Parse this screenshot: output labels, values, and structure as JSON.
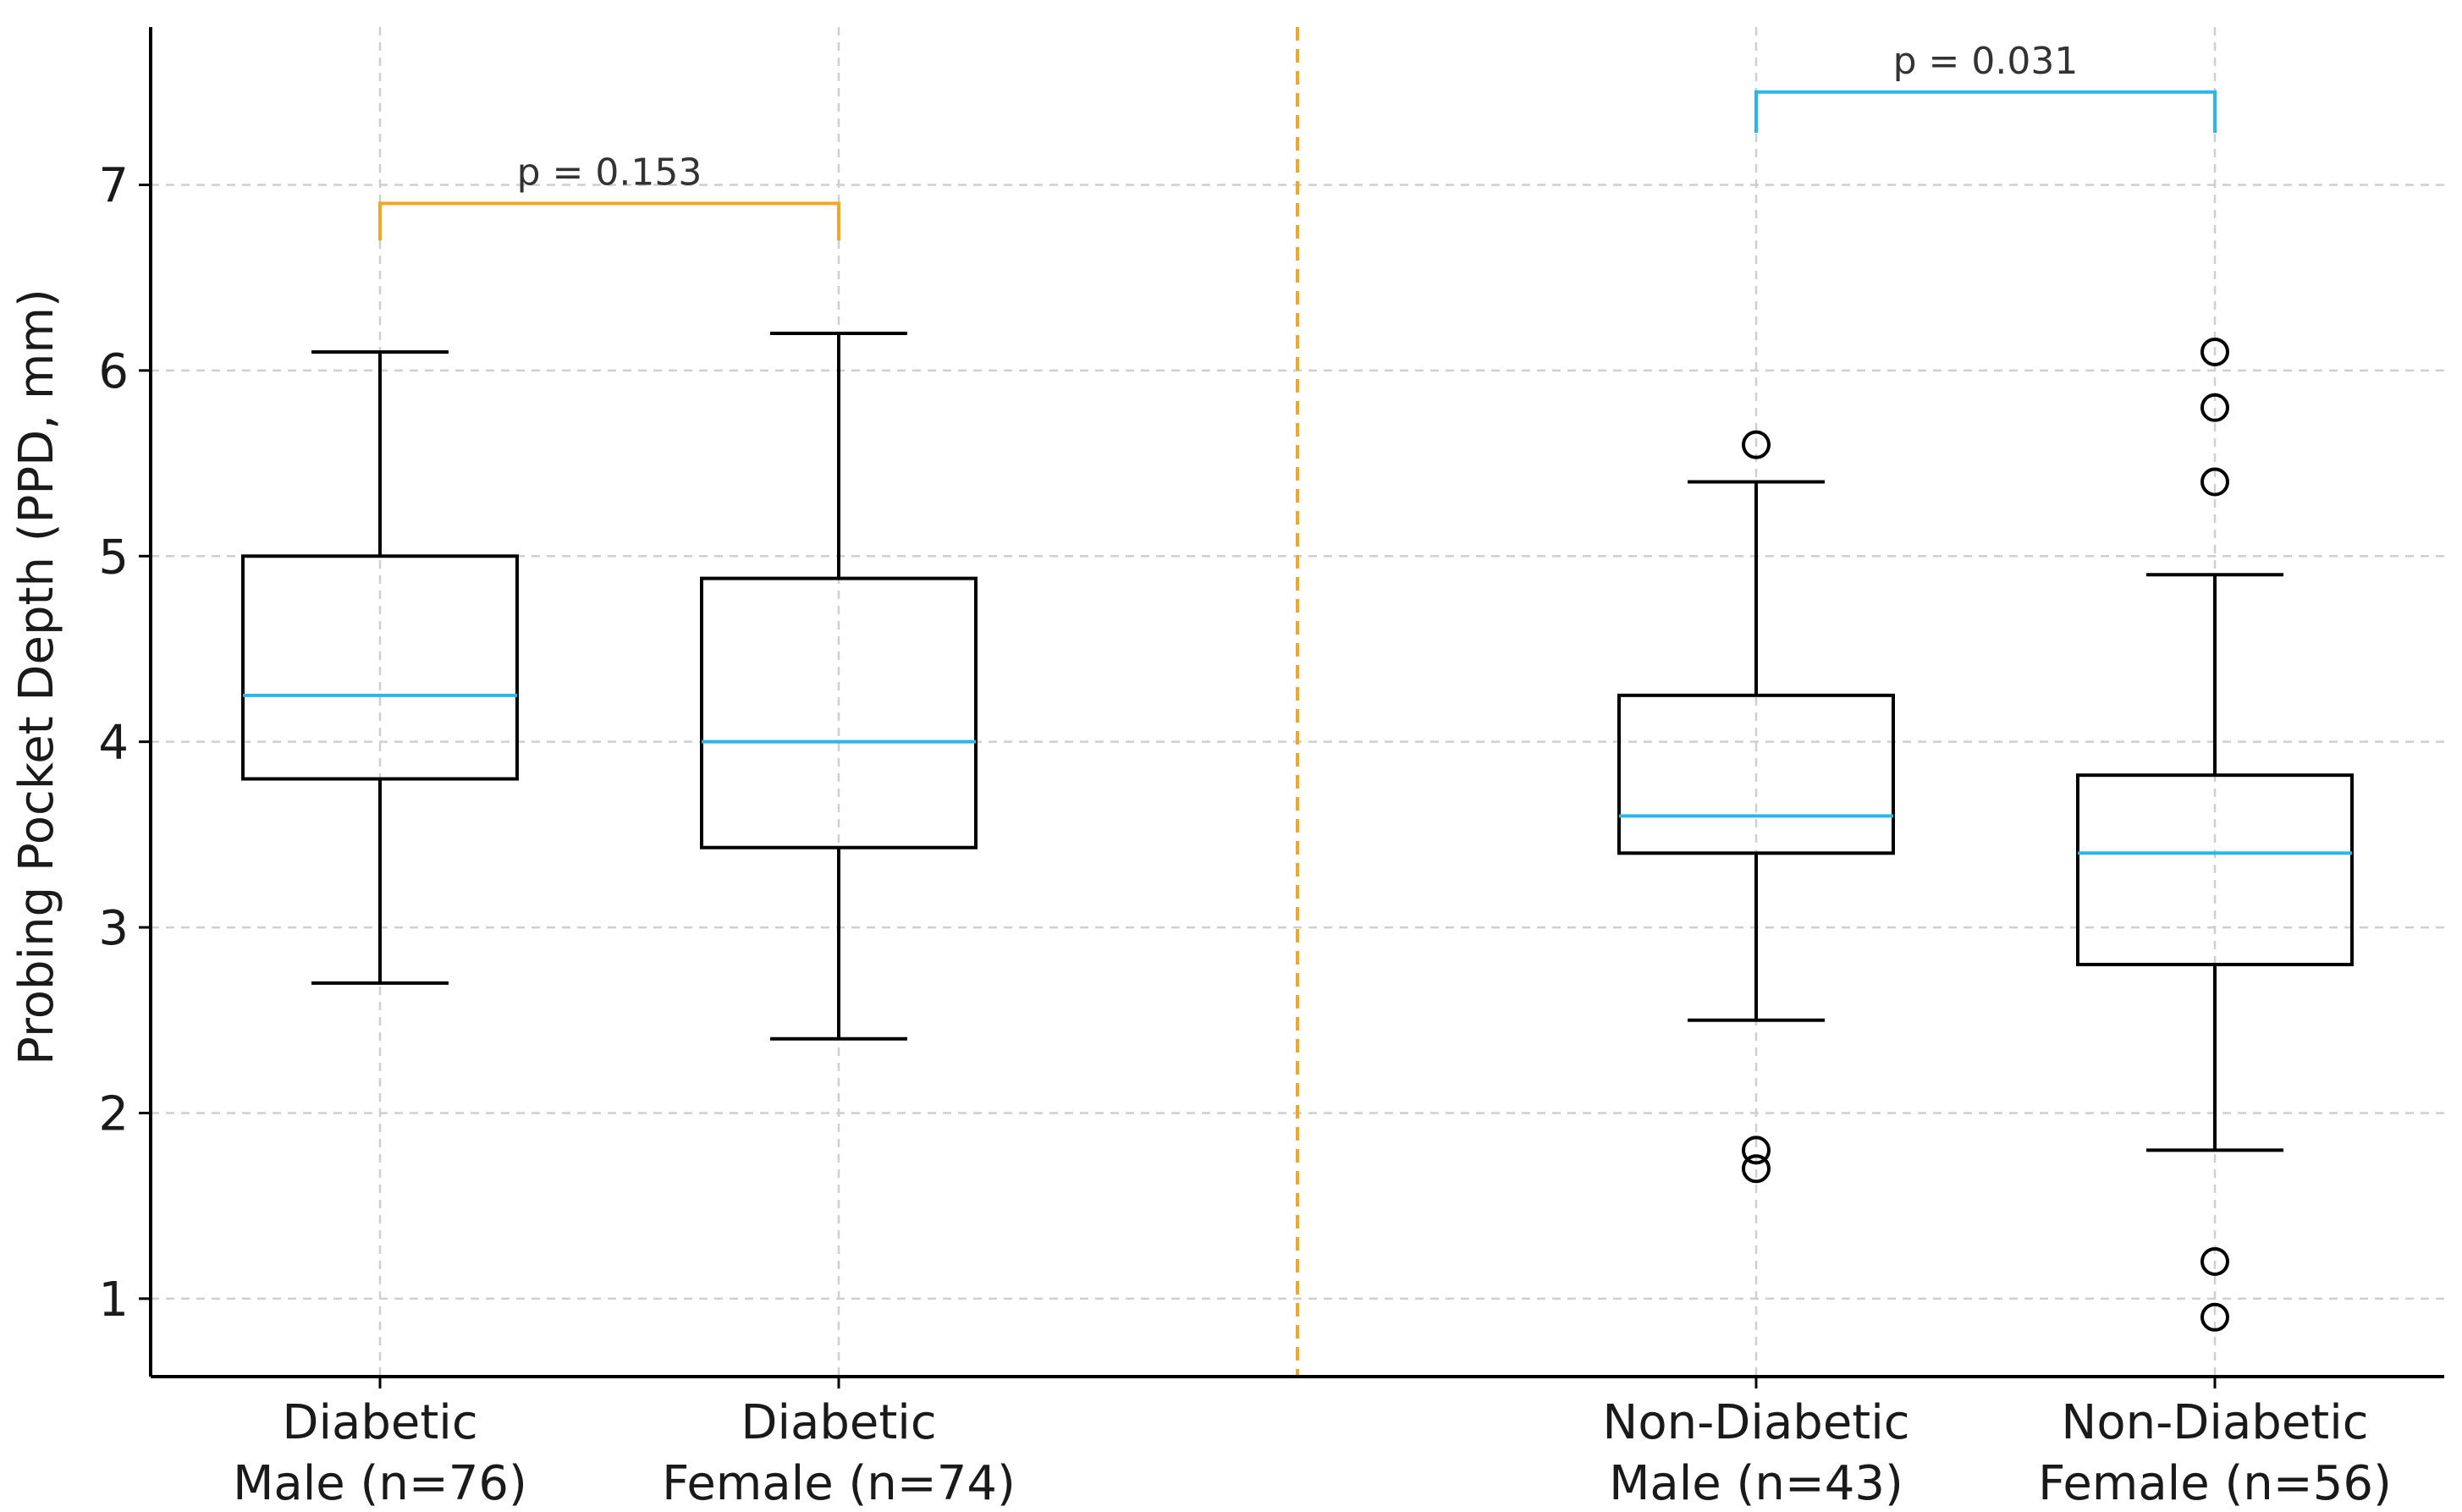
{
  "chart_data": {
    "type": "box",
    "title": "",
    "xlabel": "",
    "ylabel": "Probing Pocket Depth (PPD, mm)",
    "ylim": [
      0.58,
      7.85
    ],
    "yticks": [
      1,
      2,
      3,
      4,
      5,
      6,
      7
    ],
    "grid": true,
    "groups": [
      {
        "name": "Diabetic Male (n=76)",
        "lines": [
          "Diabetic",
          "Male (n=76)"
        ],
        "x": 1,
        "whisker_low": 2.7,
        "q1": 3.8,
        "median": 4.25,
        "q3": 5.0,
        "whisker_high": 6.1,
        "outliers": []
      },
      {
        "name": "Diabetic Female (n=74)",
        "lines": [
          "Diabetic",
          "Female (n=74)"
        ],
        "x": 2,
        "whisker_low": 2.4,
        "q1": 3.43,
        "median": 4.0,
        "q3": 4.88,
        "whisker_high": 6.2,
        "outliers": []
      },
      {
        "name": "Non-Diabetic Male (n=43)",
        "lines": [
          "Non-Diabetic",
          "Male (n=43)"
        ],
        "x": 4,
        "whisker_low": 2.5,
        "q1": 3.4,
        "median": 3.6,
        "q3": 4.25,
        "whisker_high": 5.4,
        "outliers": [
          5.6,
          1.8,
          1.7
        ]
      },
      {
        "name": "Non-Diabetic Female (n=56)",
        "lines": [
          "Non-Diabetic",
          "Female (n=56)"
        ],
        "x": 5,
        "whisker_low": 1.8,
        "q1": 2.8,
        "median": 3.4,
        "q3": 3.82,
        "whisker_high": 4.9,
        "outliers": [
          6.1,
          5.8,
          5.4,
          1.2,
          0.9
        ]
      }
    ],
    "separator": {
      "x": 3.0,
      "color": "#f5a623",
      "style": "dashed"
    },
    "comparisons": [
      {
        "from": 1,
        "to": 2,
        "y": 6.9,
        "tip": 6.7,
        "label": "p = 0.153",
        "color": "#f5a623"
      },
      {
        "from": 4,
        "to": 5,
        "y": 7.5,
        "tip": 7.28,
        "label": "p = 0.031",
        "color": "#29b6e8"
      }
    ],
    "colors": {
      "median": "#29b6e8",
      "box": "#000000",
      "grid": "#cfcfcf"
    }
  }
}
